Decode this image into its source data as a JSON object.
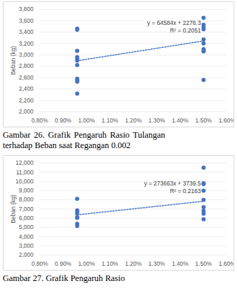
{
  "chart_data": [
    {
      "type": "scatter",
      "caption": "Gambar 26. Grafik Pengaruh Rasio Tulangan terhadap Beban saat Regangan 0.002",
      "y_label": "Beban (kg)",
      "xlim": [
        0.008,
        0.016
      ],
      "xticks": [
        {
          "value": 0.008,
          "label": "0.80%"
        },
        {
          "value": 0.009,
          "label": "0.90%"
        },
        {
          "value": 0.01,
          "label": "1.00%"
        },
        {
          "value": 0.011,
          "label": "1.10%"
        },
        {
          "value": 0.012,
          "label": "1.20%"
        },
        {
          "value": 0.013,
          "label": "1.30%"
        },
        {
          "value": 0.014,
          "label": "1.40%"
        },
        {
          "value": 0.015,
          "label": "1.50%"
        },
        {
          "value": 0.016,
          "label": "1.60%"
        }
      ],
      "ylim": [
        2000,
        3800
      ],
      "yticks": [
        {
          "value": 2000,
          "label": "2,000"
        },
        {
          "value": 2200,
          "label": "2,200"
        },
        {
          "value": 2400,
          "label": "2,400"
        },
        {
          "value": 2600,
          "label": "2,600"
        },
        {
          "value": 2800,
          "label": "2,800"
        },
        {
          "value": 3000,
          "label": "3,000"
        },
        {
          "value": 3200,
          "label": "3,200"
        },
        {
          "value": 3400,
          "label": "3,400"
        },
        {
          "value": 3600,
          "label": "3,600"
        },
        {
          "value": 3800,
          "label": "3,800"
        }
      ],
      "grid": true,
      "series": [
        {
          "type": "scatter",
          "marker": "circle",
          "color": "#4472c4",
          "x": [
            0.0096,
            0.0096,
            0.0096,
            0.0096,
            0.0096,
            0.0096,
            0.0096,
            0.0096,
            0.0096,
            0.0096,
            0.0096,
            0.015,
            0.015,
            0.015,
            0.015,
            0.015,
            0.015,
            0.015,
            0.015,
            0.015,
            0.015
          ],
          "values": [
            3460,
            3440,
            3070,
            2960,
            2930,
            2900,
            2820,
            2580,
            2550,
            2530,
            2320,
            3650,
            3530,
            3490,
            3450,
            3270,
            3200,
            3100,
            3070,
            3060,
            2560
          ]
        },
        {
          "type": "line",
          "line_style": "dotted",
          "color": "#4472c4",
          "x": [
            0.0096,
            0.015
          ],
          "values": [
            2896,
            3245
          ]
        }
      ],
      "annotations": [
        "y = 64584x + 2276.3",
        "R² = 0.2051"
      ]
    },
    {
      "type": "scatter",
      "caption": "Gambar 27. Grafik Pengaruh Rasio",
      "y_label": "Beban (kg)",
      "xlim": [
        0.008,
        0.016
      ],
      "xticks": [
        {
          "value": 0.008,
          "label": "0.80%"
        },
        {
          "value": 0.009,
          "label": "0.90%"
        },
        {
          "value": 0.01,
          "label": "1.00%"
        },
        {
          "value": 0.011,
          "label": "1.10%"
        },
        {
          "value": 0.012,
          "label": "1.20%"
        },
        {
          "value": 0.013,
          "label": "1.30%"
        },
        {
          "value": 0.014,
          "label": "1.40%"
        },
        {
          "value": 0.015,
          "label": "1.50%"
        },
        {
          "value": 0.016,
          "label": "1.60%"
        }
      ],
      "ylim": [
        2000,
        12000
      ],
      "yticks": [
        {
          "value": 2000,
          "label": "2,000"
        },
        {
          "value": 3000,
          "label": "3,000"
        },
        {
          "value": 4000,
          "label": "4,000"
        },
        {
          "value": 5000,
          "label": "5,000"
        },
        {
          "value": 6000,
          "label": "6,000"
        },
        {
          "value": 7000,
          "label": "7,000"
        },
        {
          "value": 8000,
          "label": "8,000"
        },
        {
          "value": 9000,
          "label": "9,000"
        },
        {
          "value": 10000,
          "label": "10,000"
        },
        {
          "value": 11000,
          "label": "11,000"
        },
        {
          "value": 12000,
          "label": "12,000"
        }
      ],
      "grid": true,
      "series": [
        {
          "type": "scatter",
          "marker": "circle",
          "color": "#4472c4",
          "x": [
            0.0096,
            0.0096,
            0.0096,
            0.0096,
            0.0096,
            0.0096,
            0.0096,
            0.0096,
            0.015,
            0.015,
            0.015,
            0.015,
            0.015,
            0.015,
            0.015,
            0.015,
            0.015
          ],
          "values": [
            8100,
            6850,
            6700,
            6500,
            6100,
            6050,
            5400,
            5150,
            11500,
            9800,
            9700,
            9000,
            8000,
            7200,
            6800,
            6500,
            5900
          ]
        },
        {
          "type": "line",
          "line_style": "dotted",
          "color": "#4472c4",
          "x": [
            0.0096,
            0.015
          ],
          "values": [
            6367,
            7844
          ]
        }
      ],
      "annotations": [
        "y = 273663x + 3739.5",
        "R² = 0.2163"
      ]
    }
  ]
}
